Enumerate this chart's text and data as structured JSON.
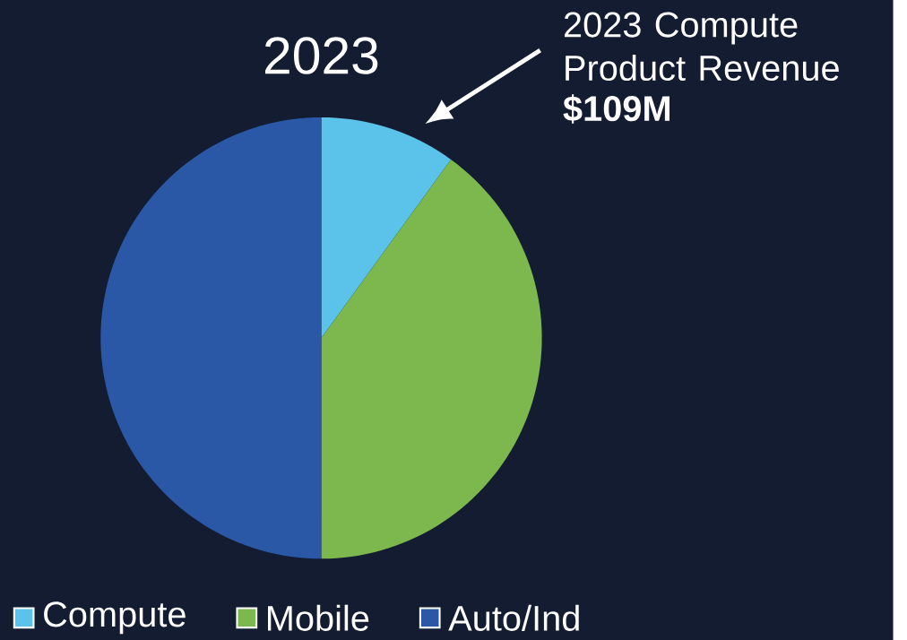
{
  "chart_data": {
    "type": "pie",
    "title": "2023",
    "categories": [
      "Compute",
      "Mobile",
      "Auto/Ind"
    ],
    "values": [
      10,
      40,
      50
    ],
    "colors": [
      "#5bc3ea",
      "#7cb84e",
      "#2a58a6"
    ],
    "legend": "bottom",
    "annotations": [
      "2023 Compute Product Revenue",
      "$109M"
    ]
  }
}
